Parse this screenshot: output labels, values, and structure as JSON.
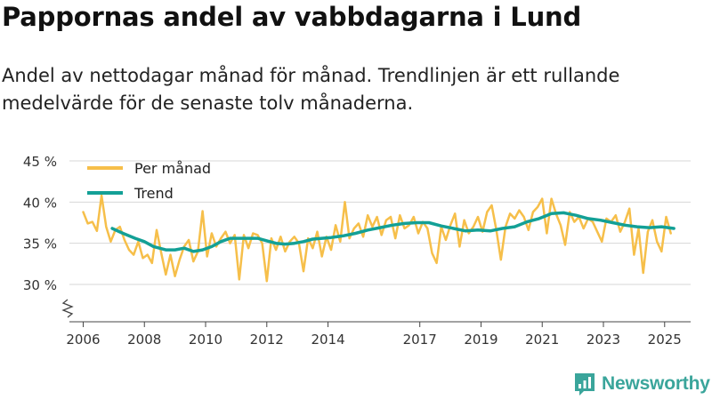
{
  "header": {
    "title": "Pappornas andel av vabbdagarna i Lund",
    "subtitle": "Andel av nettodagar månad för månad. Trendlinjen är ett rullande medelvärde för de senaste tolv månaderna."
  },
  "brand": {
    "name": "Newsworthy",
    "icon": "newsworthy-logo-icon",
    "color": "#3aa59b"
  },
  "chart_data": {
    "type": "line",
    "title": "Pappornas andel av vabbdagarna i Lund",
    "xlabel": "",
    "ylabel": "",
    "ylim": [
      30,
      45
    ],
    "axis_break": true,
    "yticks": [
      {
        "value": 30,
        "label": "30 %"
      },
      {
        "value": 35,
        "label": "35 %"
      },
      {
        "value": 40,
        "label": "40 %"
      },
      {
        "value": 45,
        "label": "45 %"
      }
    ],
    "xlim": [
      2005.55,
      2025.85
    ],
    "xticks": [
      {
        "value": 2006,
        "label": "2006"
      },
      {
        "value": 2008,
        "label": "2008"
      },
      {
        "value": 2010,
        "label": "2010"
      },
      {
        "value": 2012,
        "label": "2012"
      },
      {
        "value": 2014,
        "label": "2014"
      },
      {
        "value": 2017,
        "label": "2017"
      },
      {
        "value": 2019,
        "label": "2019"
      },
      {
        "value": 2021,
        "label": "2021"
      },
      {
        "value": 2023,
        "label": "2023"
      },
      {
        "value": 2025,
        "label": "2025"
      }
    ],
    "legend": {
      "position": "top-left"
    },
    "series": [
      {
        "name": "Per månad",
        "color": "#f6bf4a",
        "x": [
          2006.0,
          2006.15,
          2006.3,
          2006.45,
          2006.6,
          2006.75,
          2006.9,
          2007.05,
          2007.2,
          2007.35,
          2007.5,
          2007.65,
          2007.8,
          2007.95,
          2008.1,
          2008.25,
          2008.4,
          2008.55,
          2008.7,
          2008.85,
          2009.0,
          2009.15,
          2009.3,
          2009.45,
          2009.6,
          2009.75,
          2009.9,
          2010.05,
          2010.2,
          2010.35,
          2010.5,
          2010.65,
          2010.8,
          2010.95,
          2011.1,
          2011.25,
          2011.4,
          2011.55,
          2011.7,
          2011.85,
          2012.0,
          2012.15,
          2012.3,
          2012.45,
          2012.6,
          2012.75,
          2012.9,
          2013.05,
          2013.2,
          2013.35,
          2013.5,
          2013.65,
          2013.8,
          2013.95,
          2014.1,
          2014.25,
          2014.4,
          2014.55,
          2014.7,
          2014.85,
          2015.0,
          2015.15,
          2015.3,
          2015.45,
          2015.6,
          2015.75,
          2015.9,
          2016.05,
          2016.2,
          2016.35,
          2016.5,
          2016.65,
          2016.8,
          2016.95,
          2017.1,
          2017.25,
          2017.4,
          2017.55,
          2017.7,
          2017.85,
          2018.0,
          2018.15,
          2018.3,
          2018.45,
          2018.6,
          2018.75,
          2018.9,
          2019.05,
          2019.2,
          2019.35,
          2019.5,
          2019.65,
          2019.8,
          2019.95,
          2020.1,
          2020.25,
          2020.4,
          2020.55,
          2020.7,
          2020.85,
          2021.0,
          2021.15,
          2021.3,
          2021.45,
          2021.6,
          2021.75,
          2021.9,
          2022.05,
          2022.2,
          2022.35,
          2022.5,
          2022.65,
          2022.8,
          2022.95,
          2023.1,
          2023.25,
          2023.4,
          2023.55,
          2023.7,
          2023.85,
          2024.0,
          2024.15,
          2024.3,
          2024.45,
          2024.6,
          2024.75,
          2024.9,
          2025.05,
          2025.2
        ],
        "values": [
          38.8,
          37.4,
          37.6,
          36.5,
          40.8,
          37.0,
          35.2,
          36.6,
          37.0,
          35.4,
          34.2,
          33.6,
          35.2,
          33.2,
          33.6,
          32.6,
          36.6,
          33.8,
          31.2,
          33.6,
          31.0,
          33.0,
          34.6,
          35.4,
          32.8,
          34.0,
          38.9,
          33.4,
          36.2,
          34.6,
          35.6,
          36.4,
          35.0,
          36.0,
          30.6,
          36.0,
          34.4,
          36.2,
          36.0,
          35.0,
          30.4,
          35.6,
          34.2,
          35.8,
          34.0,
          35.2,
          35.8,
          35.0,
          31.6,
          35.6,
          34.4,
          36.4,
          33.4,
          35.8,
          34.2,
          37.2,
          35.2,
          40.0,
          35.6,
          36.8,
          37.4,
          35.8,
          38.4,
          37.0,
          38.2,
          36.0,
          37.8,
          38.2,
          35.6,
          38.4,
          36.8,
          37.2,
          38.2,
          36.2,
          37.6,
          36.8,
          33.8,
          32.6,
          37.0,
          35.4,
          37.2,
          38.6,
          34.6,
          37.8,
          36.2,
          37.0,
          38.2,
          36.4,
          38.8,
          39.6,
          36.6,
          33.0,
          37.0,
          38.6,
          38.0,
          39.0,
          38.2,
          36.6,
          38.8,
          39.4,
          40.4,
          36.2,
          40.4,
          38.6,
          37.2,
          34.8,
          38.8,
          37.6,
          38.2,
          36.8,
          38.0,
          37.6,
          36.4,
          35.2,
          38.0,
          37.6,
          38.4,
          36.4,
          37.6,
          39.2,
          33.6,
          36.8,
          31.4,
          36.4,
          37.8,
          35.2,
          34.0,
          38.2,
          36.2
        ]
      },
      {
        "name": "Trend",
        "color": "#13a096",
        "x": [
          2006.95,
          2007.3,
          2007.7,
          2008.0,
          2008.3,
          2008.7,
          2009.0,
          2009.3,
          2009.6,
          2009.9,
          2010.2,
          2010.5,
          2010.8,
          2011.1,
          2011.4,
          2011.7,
          2012.0,
          2012.3,
          2012.6,
          2012.9,
          2013.2,
          2013.5,
          2013.8,
          2014.1,
          2014.5,
          2014.9,
          2015.3,
          2015.7,
          2016.1,
          2016.5,
          2016.9,
          2017.3,
          2017.7,
          2018.1,
          2018.5,
          2018.9,
          2019.3,
          2019.7,
          2020.1,
          2020.5,
          2020.9,
          2021.3,
          2021.7,
          2022.1,
          2022.5,
          2022.9,
          2023.3,
          2023.7,
          2024.1,
          2024.5,
          2024.9,
          2025.3
        ],
        "values": [
          36.8,
          36.2,
          35.6,
          35.2,
          34.6,
          34.2,
          34.2,
          34.4,
          34.0,
          34.2,
          34.6,
          35.2,
          35.6,
          35.6,
          35.6,
          35.6,
          35.3,
          35.0,
          34.9,
          35.0,
          35.2,
          35.5,
          35.6,
          35.7,
          35.9,
          36.2,
          36.6,
          36.9,
          37.2,
          37.4,
          37.5,
          37.5,
          37.1,
          36.8,
          36.5,
          36.6,
          36.5,
          36.8,
          37.0,
          37.6,
          38.0,
          38.6,
          38.7,
          38.4,
          38.0,
          37.8,
          37.5,
          37.2,
          37.0,
          36.9,
          37.0,
          36.8
        ]
      }
    ]
  }
}
